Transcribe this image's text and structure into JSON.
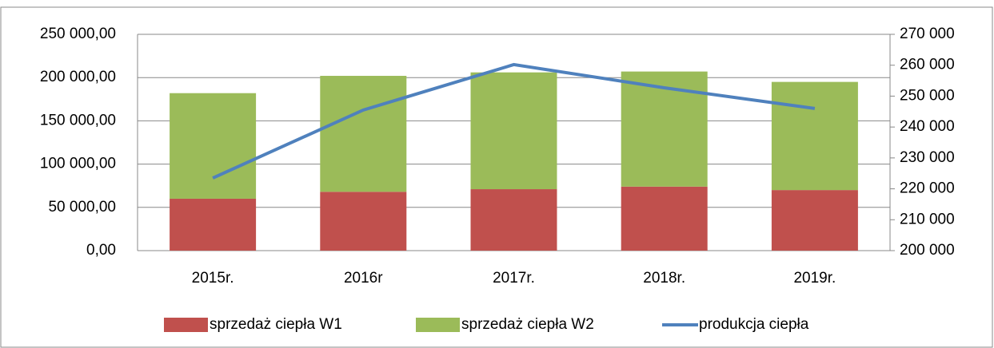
{
  "chart_data": {
    "type": "bar_line",
    "categories": [
      "2015r.",
      "2016r",
      "2017r.",
      "2018r.",
      "2019r."
    ],
    "series": [
      {
        "name": "sprzedaż ciepła W1",
        "type": "bar",
        "color": "#c0504d",
        "values": [
          60000,
          68000,
          71000,
          74000,
          70000
        ]
      },
      {
        "name": "sprzedaż ciepła W2",
        "type": "bar",
        "color": "#9bbb59",
        "values": [
          122000,
          134000,
          135000,
          133000,
          125000
        ]
      },
      {
        "name": "produkcja ciepła",
        "type": "line",
        "axis": "y2",
        "color": "#4f81bd",
        "values": [
          223500,
          245500,
          260200,
          252700,
          246000
        ]
      }
    ],
    "stacked": true,
    "ylim": [
      0,
      250000
    ],
    "yticks": [
      {
        "value": 0,
        "label": "0,00"
      },
      {
        "value": 50000,
        "label": "50 000,00"
      },
      {
        "value": 100000,
        "label": "100 000,00"
      },
      {
        "value": 150000,
        "label": "150 000,00"
      },
      {
        "value": 200000,
        "label": "200 000,00"
      },
      {
        "value": 250000,
        "label": "250 000,00"
      }
    ],
    "y2lim": [
      200000,
      270000
    ],
    "y2ticks": [
      {
        "value": 200000,
        "label": "200 000"
      },
      {
        "value": 210000,
        "label": "210 000"
      },
      {
        "value": 220000,
        "label": "220 000"
      },
      {
        "value": 230000,
        "label": "230 000"
      },
      {
        "value": 240000,
        "label": "240 000"
      },
      {
        "value": 250000,
        "label": "250 000"
      },
      {
        "value": 260000,
        "label": "260 000"
      },
      {
        "value": 270000,
        "label": "270 000"
      }
    ],
    "grid": true,
    "legend": "bottom"
  }
}
